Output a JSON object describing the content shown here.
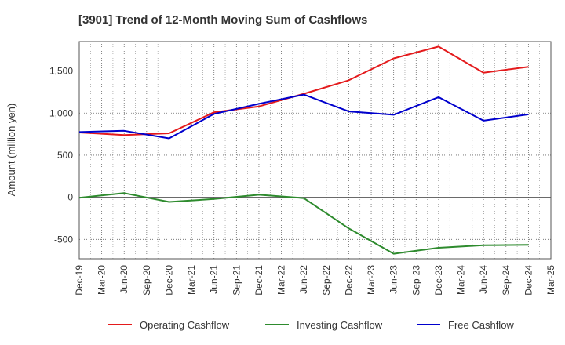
{
  "chart_data": {
    "type": "line",
    "title": "[3901]  Trend of 12-Month Moving Sum of Cashflows",
    "ylabel": "Amount (million yen)",
    "xlabel": "",
    "ylim": [
      -730,
      1850
    ],
    "yticks": [
      -500,
      0,
      500,
      1000,
      1500
    ],
    "ytick_labels": [
      "-500",
      "0",
      "500",
      "1,000",
      "1,500"
    ],
    "categories": [
      "Dec-19",
      "Mar-20",
      "Jun-20",
      "Sep-20",
      "Dec-20",
      "Mar-21",
      "Jun-21",
      "Sep-21",
      "Dec-21",
      "Mar-22",
      "Jun-22",
      "Sep-22",
      "Dec-22",
      "Mar-23",
      "Jun-23",
      "Sep-23",
      "Dec-23",
      "Mar-24",
      "Jun-24",
      "Sep-24",
      "Dec-24",
      "Mar-25"
    ],
    "grid": true,
    "legend_position": "bottom",
    "series": [
      {
        "name": "Operating Cashflow",
        "color": "#e41a1c",
        "points": [
          {
            "x": "Dec-19",
            "y": 770
          },
          {
            "x": "Jun-20",
            "y": 740
          },
          {
            "x": "Dec-20",
            "y": 760
          },
          {
            "x": "Jun-21",
            "y": 1010
          },
          {
            "x": "Dec-21",
            "y": 1080
          },
          {
            "x": "Jun-22",
            "y": 1230
          },
          {
            "x": "Dec-22",
            "y": 1390
          },
          {
            "x": "Jun-23",
            "y": 1650
          },
          {
            "x": "Dec-23",
            "y": 1790
          },
          {
            "x": "Jun-24",
            "y": 1480
          },
          {
            "x": "Dec-24",
            "y": 1550
          }
        ]
      },
      {
        "name": "Investing Cashflow",
        "color": "#2e8b2e",
        "points": [
          {
            "x": "Dec-19",
            "y": -5
          },
          {
            "x": "Jun-20",
            "y": 50
          },
          {
            "x": "Dec-20",
            "y": -55
          },
          {
            "x": "Jun-21",
            "y": -20
          },
          {
            "x": "Dec-21",
            "y": 30
          },
          {
            "x": "Jun-22",
            "y": -10
          },
          {
            "x": "Dec-22",
            "y": -370
          },
          {
            "x": "Jun-23",
            "y": -670
          },
          {
            "x": "Dec-23",
            "y": -600
          },
          {
            "x": "Jun-24",
            "y": -570
          },
          {
            "x": "Dec-24",
            "y": -565
          }
        ]
      },
      {
        "name": "Free Cashflow",
        "color": "#0000cd",
        "points": [
          {
            "x": "Dec-19",
            "y": 775
          },
          {
            "x": "Jun-20",
            "y": 790
          },
          {
            "x": "Dec-20",
            "y": 700
          },
          {
            "x": "Jun-21",
            "y": 990
          },
          {
            "x": "Dec-21",
            "y": 1110
          },
          {
            "x": "Jun-22",
            "y": 1220
          },
          {
            "x": "Dec-22",
            "y": 1020
          },
          {
            "x": "Jun-23",
            "y": 980
          },
          {
            "x": "Dec-23",
            "y": 1190
          },
          {
            "x": "Jun-24",
            "y": 910
          },
          {
            "x": "Dec-24",
            "y": 985
          }
        ]
      }
    ]
  }
}
